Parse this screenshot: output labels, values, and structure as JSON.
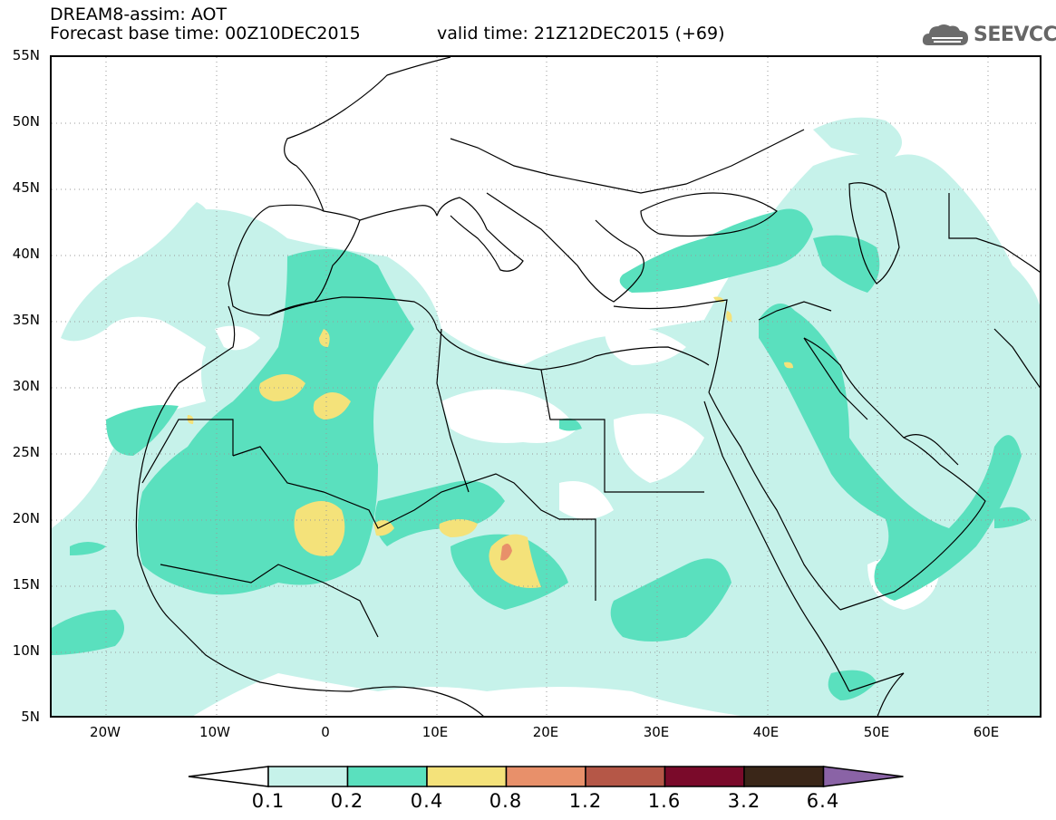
{
  "header": {
    "line1": "DREAM8-assim: AOT",
    "line2": "Forecast base time: 00Z10DEC2015",
    "valid": "valid time: 21Z12DEC2015 (+69)",
    "logo": "SEEVCCC"
  },
  "map": {
    "lat_labels": [
      "55N",
      "50N",
      "45N",
      "40N",
      "35N",
      "30N",
      "25N",
      "20N",
      "15N",
      "10N",
      "5N"
    ],
    "lon_labels": [
      "20W",
      "10W",
      "0",
      "10E",
      "20E",
      "30E",
      "40E",
      "50E",
      "60E"
    ],
    "lat_range": [
      5,
      55
    ],
    "lon_range": [
      -25,
      65
    ]
  },
  "legend": {
    "levels": [
      "0.1",
      "0.2",
      "0.4",
      "0.8",
      "1.2",
      "1.6",
      "3.2",
      "6.4"
    ],
    "colors": [
      "#ffffff",
      "#c6f2ea",
      "#5ae0be",
      "#f4e27a",
      "#e8906a",
      "#b55747",
      "#7a0a2a",
      "#3a2618",
      "#8a63a6"
    ]
  }
}
